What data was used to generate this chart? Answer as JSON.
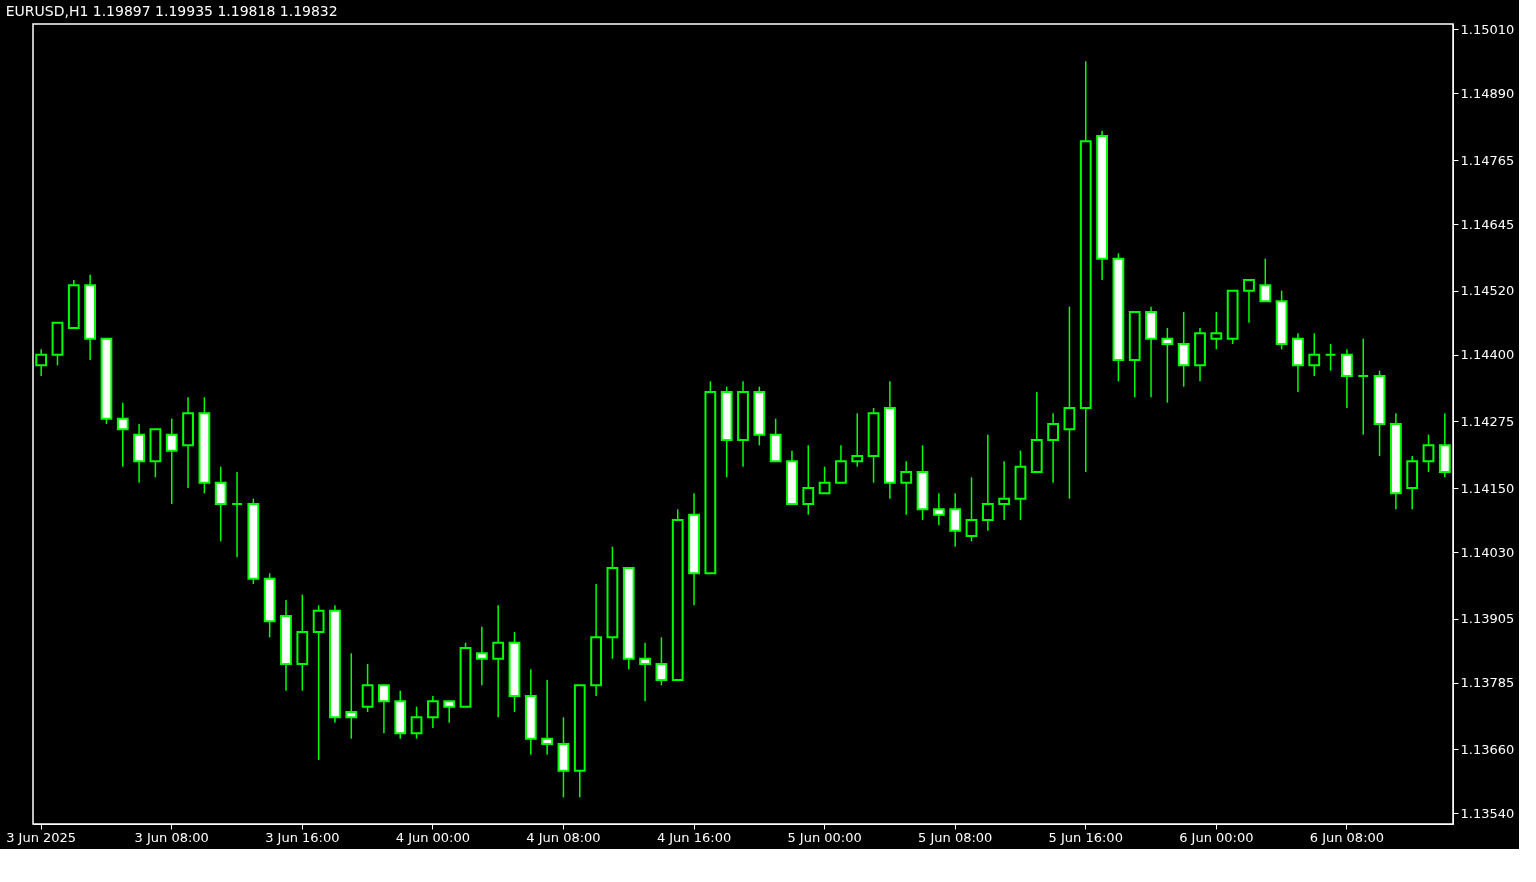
{
  "chart_data": {
    "type": "candlestick",
    "title": "EURUSD,H1  1.19897 1.19935 1.19818 1.19832",
    "color": "#00ff00",
    "grid": false,
    "categories": [
      "3 Jun 2025",
      null,
      null,
      null,
      null,
      null,
      null,
      null,
      "3 Jun 08:00",
      null,
      null,
      null,
      null,
      null,
      null,
      null,
      "3 Jun 16:00",
      null,
      null,
      null,
      null,
      null,
      null,
      null,
      "4 Jun 00:00",
      null,
      null,
      null,
      null,
      null,
      null,
      null,
      "4 Jun 08:00",
      null,
      null,
      null,
      null,
      null,
      null,
      null,
      "4 Jun 16:00",
      null,
      null,
      null,
      null,
      null,
      null,
      null,
      "5 Jun 00:00",
      null,
      null,
      null,
      null,
      null,
      null,
      null,
      "5 Jun 08:00",
      null,
      null,
      null,
      null,
      null,
      null,
      null,
      "5 Jun 16:00",
      null,
      null,
      null,
      null,
      null,
      null,
      null,
      "6 Jun 00:00",
      null,
      null,
      null,
      null,
      null,
      null,
      null,
      "6 Jun 08:00",
      null,
      null,
      null,
      null,
      null,
      null
    ],
    "ohlc": [
      [
        1.1438,
        1.1441,
        1.1436,
        1.144
      ],
      [
        1.144,
        1.1446,
        1.1438,
        1.1446
      ],
      [
        1.1445,
        1.1454,
        1.1445,
        1.1453
      ],
      [
        1.1453,
        1.1455,
        1.1439,
        1.1443
      ],
      [
        1.1443,
        1.1443,
        1.1427,
        1.1428
      ],
      [
        1.1428,
        1.1431,
        1.1419,
        1.1426
      ],
      [
        1.1425,
        1.1427,
        1.1416,
        1.142
      ],
      [
        1.142,
        1.1426,
        1.1417,
        1.1426
      ],
      [
        1.1425,
        1.1428,
        1.1412,
        1.1422
      ],
      [
        1.1423,
        1.1432,
        1.1415,
        1.1429
      ],
      [
        1.1429,
        1.1432,
        1.1414,
        1.1416
      ],
      [
        1.1416,
        1.1419,
        1.1405,
        1.1412
      ],
      [
        1.1412,
        1.1418,
        1.1402,
        1.1412
      ],
      [
        1.1412,
        1.1413,
        1.1397,
        1.1398
      ],
      [
        1.1398,
        1.1399,
        1.1387,
        1.139
      ],
      [
        1.1391,
        1.1394,
        1.1377,
        1.1382
      ],
      [
        1.1382,
        1.1395,
        1.1377,
        1.1388
      ],
      [
        1.1388,
        1.1393,
        1.1364,
        1.1392
      ],
      [
        1.1392,
        1.1393,
        1.1371,
        1.1372
      ],
      [
        1.1373,
        1.1384,
        1.1368,
        1.1372
      ],
      [
        1.1374,
        1.1382,
        1.1373,
        1.1378
      ],
      [
        1.1378,
        1.1378,
        1.1369,
        1.1375
      ],
      [
        1.1375,
        1.1377,
        1.1368,
        1.1369
      ],
      [
        1.1369,
        1.1374,
        1.1368,
        1.1372
      ],
      [
        1.1372,
        1.1376,
        1.137,
        1.1375
      ],
      [
        1.1375,
        1.1375,
        1.1371,
        1.1374
      ],
      [
        1.1374,
        1.1386,
        1.1374,
        1.1385
      ],
      [
        1.1384,
        1.1389,
        1.1378,
        1.1383
      ],
      [
        1.1383,
        1.1393,
        1.1372,
        1.1386
      ],
      [
        1.1386,
        1.1388,
        1.1373,
        1.1376
      ],
      [
        1.1376,
        1.1381,
        1.1365,
        1.1368
      ],
      [
        1.1368,
        1.1379,
        1.1365,
        1.1367
      ],
      [
        1.1367,
        1.1372,
        1.1357,
        1.1362
      ],
      [
        1.1362,
        1.1378,
        1.1357,
        1.1378
      ],
      [
        1.1378,
        1.1397,
        1.1376,
        1.1387
      ],
      [
        1.1387,
        1.1404,
        1.1383,
        1.14
      ],
      [
        1.14,
        1.14,
        1.1381,
        1.1383
      ],
      [
        1.1383,
        1.1386,
        1.1375,
        1.1382
      ],
      [
        1.1382,
        1.1387,
        1.1378,
        1.1379
      ],
      [
        1.1379,
        1.1411,
        1.1379,
        1.1409
      ],
      [
        1.141,
        1.1414,
        1.1393,
        1.1399
      ],
      [
        1.1399,
        1.1435,
        1.1399,
        1.1433
      ],
      [
        1.1433,
        1.1434,
        1.1417,
        1.1424
      ],
      [
        1.1424,
        1.1435,
        1.1419,
        1.1433
      ],
      [
        1.1433,
        1.1434,
        1.1423,
        1.1425
      ],
      [
        1.1425,
        1.1428,
        1.142,
        1.142
      ],
      [
        1.142,
        1.1422,
        1.1412,
        1.1412
      ],
      [
        1.1412,
        1.1423,
        1.141,
        1.1415
      ],
      [
        1.1414,
        1.1419,
        1.1414,
        1.1416
      ],
      [
        1.1416,
        1.1423,
        1.1416,
        1.142
      ],
      [
        1.142,
        1.1429,
        1.1419,
        1.1421
      ],
      [
        1.1421,
        1.143,
        1.1416,
        1.1429
      ],
      [
        1.143,
        1.1435,
        1.1413,
        1.1416
      ],
      [
        1.1416,
        1.142,
        1.141,
        1.1418
      ],
      [
        1.1418,
        1.1423,
        1.1409,
        1.1411
      ],
      [
        1.1411,
        1.1414,
        1.1408,
        1.141
      ],
      [
        1.1411,
        1.1414,
        1.1404,
        1.1407
      ],
      [
        1.1406,
        1.1417,
        1.1405,
        1.1409
      ],
      [
        1.1409,
        1.1425,
        1.1407,
        1.1412
      ],
      [
        1.1412,
        1.142,
        1.1409,
        1.1413
      ],
      [
        1.1413,
        1.1422,
        1.1409,
        1.1419
      ],
      [
        1.1418,
        1.1433,
        1.1418,
        1.1424
      ],
      [
        1.1424,
        1.1429,
        1.1416,
        1.1427
      ],
      [
        1.1426,
        1.1449,
        1.1413,
        1.143
      ],
      [
        1.143,
        1.1495,
        1.1418,
        1.148
      ],
      [
        1.1481,
        1.1482,
        1.1454,
        1.1458
      ],
      [
        1.1458,
        1.1459,
        1.1435,
        1.1439
      ],
      [
        1.1439,
        1.1448,
        1.1432,
        1.1448
      ],
      [
        1.1448,
        1.1449,
        1.1432,
        1.1443
      ],
      [
        1.1443,
        1.1445,
        1.1431,
        1.1442
      ],
      [
        1.1442,
        1.1448,
        1.1434,
        1.1438
      ],
      [
        1.1438,
        1.1445,
        1.1435,
        1.1444
      ],
      [
        1.1443,
        1.1448,
        1.1441,
        1.1444
      ],
      [
        1.1443,
        1.1452,
        1.1442,
        1.1452
      ],
      [
        1.1452,
        1.1454,
        1.1446,
        1.1454
      ],
      [
        1.1453,
        1.1458,
        1.145,
        1.145
      ],
      [
        1.145,
        1.1452,
        1.1441,
        1.1442
      ],
      [
        1.1443,
        1.1444,
        1.1433,
        1.1438
      ],
      [
        1.1438,
        1.1444,
        1.1436,
        1.144
      ],
      [
        1.144,
        1.1442,
        1.1437,
        1.144
      ],
      [
        1.144,
        1.1441,
        1.143,
        1.1436
      ],
      [
        1.1436,
        1.1443,
        1.1425,
        1.1436
      ],
      [
        1.1436,
        1.1437,
        1.1421,
        1.1427
      ],
      [
        1.1427,
        1.1429,
        1.1411,
        1.1414
      ],
      [
        1.1415,
        1.1421,
        1.1411,
        1.142
      ],
      [
        1.142,
        1.1425,
        1.1418,
        1.1423
      ],
      [
        1.1423,
        1.1429,
        1.1417,
        1.1418
      ]
    ],
    "ylim": [
      1.1352,
      1.1502
    ],
    "yticks": [
      {
        "value": 1.1501,
        "label": "1.15010"
      },
      {
        "value": 1.1489,
        "label": "1.14890"
      },
      {
        "value": 1.14765,
        "label": "1.14765"
      },
      {
        "value": 1.14645,
        "label": "1.14645"
      },
      {
        "value": 1.1452,
        "label": "1.14520"
      },
      {
        "value": 1.144,
        "label": "1.14400"
      },
      {
        "value": 1.14275,
        "label": "1.14275"
      },
      {
        "value": 1.1415,
        "label": "1.14150"
      },
      {
        "value": 1.1403,
        "label": "1.14030"
      },
      {
        "value": 1.13905,
        "label": "1.13905"
      },
      {
        "value": 1.13785,
        "label": "1.13785"
      },
      {
        "value": 1.1366,
        "label": "1.13660"
      },
      {
        "value": 1.1354,
        "label": "1.13540"
      }
    ]
  }
}
